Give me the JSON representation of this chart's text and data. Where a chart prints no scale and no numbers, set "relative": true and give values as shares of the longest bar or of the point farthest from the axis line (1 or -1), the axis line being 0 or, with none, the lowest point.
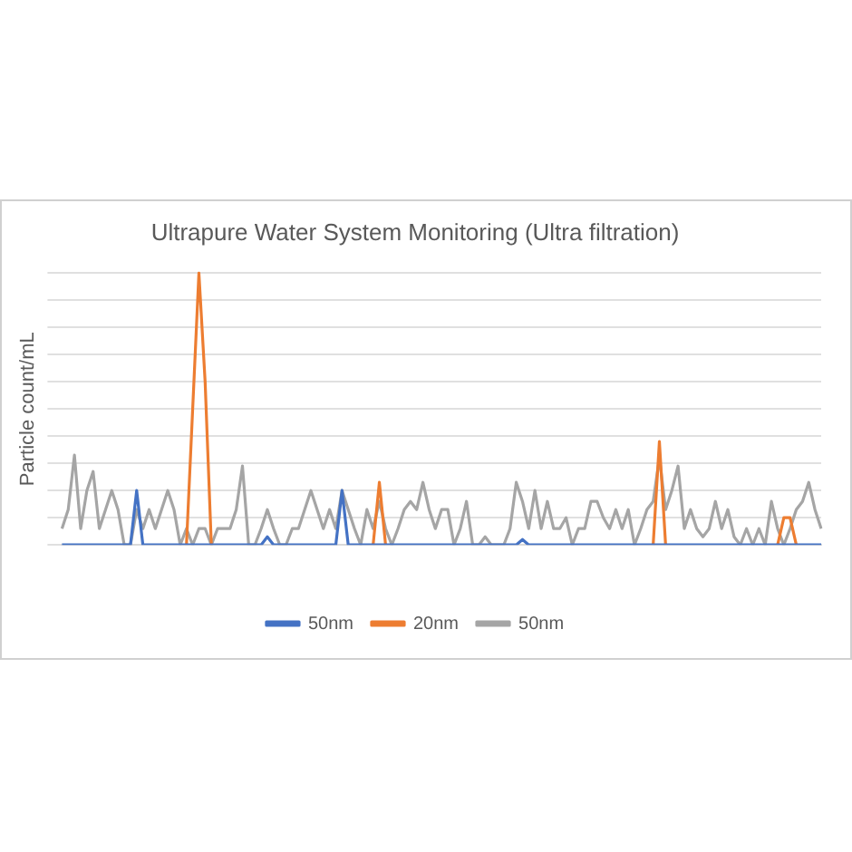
{
  "chart_data": {
    "type": "line",
    "title": "Ultrapure Water System Monitoring (Ultra filtration)",
    "ylabel": "Particle count/mL",
    "relative": true,
    "grid": "y",
    "legend": "bottom",
    "marker": "none",
    "categories": [
      null,
      null,
      null,
      null,
      null,
      null,
      null,
      null,
      null,
      null,
      null,
      null,
      null,
      null,
      null,
      null,
      null,
      null,
      null,
      null,
      null,
      null,
      null,
      null,
      null,
      null,
      null,
      null,
      null,
      null,
      null,
      null,
      null,
      null,
      null,
      null,
      null,
      null,
      null,
      null,
      null,
      null,
      null,
      null,
      null,
      null,
      null,
      null,
      null,
      null,
      null,
      null,
      null,
      null,
      null,
      null,
      null,
      null,
      null,
      null,
      null,
      null,
      null,
      null,
      null,
      null,
      null,
      null,
      null,
      null,
      null,
      null,
      null,
      null,
      null,
      null,
      null,
      null,
      null,
      null,
      null,
      null,
      null,
      null,
      null,
      null,
      null,
      null,
      null,
      null,
      null,
      null,
      null,
      null,
      null,
      null,
      null,
      null,
      null,
      null,
      null,
      null,
      null,
      null,
      null,
      null,
      null,
      null,
      null,
      null,
      null,
      null,
      null,
      null,
      null,
      null,
      null,
      null,
      null,
      null,
      null,
      null,
      null
    ],
    "series": [
      {
        "name": "50nm",
        "color": "#4472c4",
        "values": [
          0,
          0,
          0,
          0,
          0,
          0,
          0,
          0,
          0,
          0,
          0,
          0,
          0.2,
          0,
          0,
          0,
          0,
          0,
          0,
          0,
          0,
          0,
          0,
          0,
          0,
          0,
          0,
          0,
          0,
          0,
          0,
          0,
          0,
          0.03,
          0,
          0,
          0,
          0,
          0,
          0,
          0,
          0,
          0,
          0,
          0,
          0.2,
          0,
          0,
          0,
          0,
          0,
          0,
          0,
          0,
          0,
          0,
          0,
          0,
          0,
          0,
          0,
          0,
          0,
          0,
          0,
          0,
          0,
          0,
          0,
          0,
          0,
          0,
          0,
          0,
          0.02,
          0,
          0,
          0,
          0,
          0,
          0,
          0,
          0,
          0,
          0,
          0,
          0,
          0,
          0,
          0,
          0,
          0,
          0,
          0,
          0,
          0,
          0,
          0,
          0,
          0,
          0,
          0,
          0,
          0,
          0,
          0,
          0,
          0,
          0,
          0,
          0,
          0,
          0,
          0,
          0,
          0,
          0,
          0,
          0,
          0,
          0,
          0,
          0
        ]
      },
      {
        "name": "20nm",
        "color": "#ed7d31",
        "values": [
          null,
          null,
          null,
          null,
          null,
          null,
          null,
          null,
          null,
          null,
          null,
          null,
          null,
          null,
          null,
          null,
          null,
          null,
          null,
          null,
          0,
          0.5,
          1,
          0.6,
          0,
          null,
          null,
          null,
          null,
          null,
          null,
          null,
          null,
          null,
          null,
          null,
          null,
          null,
          null,
          null,
          null,
          null,
          null,
          null,
          null,
          null,
          null,
          null,
          null,
          null,
          0,
          0.23,
          0,
          null,
          null,
          null,
          null,
          null,
          null,
          null,
          null,
          null,
          null,
          null,
          null,
          null,
          null,
          null,
          null,
          null,
          null,
          null,
          null,
          null,
          null,
          null,
          null,
          null,
          null,
          null,
          null,
          null,
          null,
          null,
          null,
          null,
          null,
          null,
          null,
          null,
          null,
          null,
          null,
          null,
          null,
          0,
          0.38,
          0,
          null,
          null,
          null,
          null,
          null,
          null,
          null,
          null,
          null,
          null,
          null,
          null,
          null,
          null,
          null,
          null,
          null,
          0,
          0.1,
          0.1,
          0,
          null,
          null,
          null,
          null
        ]
      },
      {
        "name": "50nm",
        "color": "#a5a5a5",
        "values": [
          0.06,
          0.13,
          0.33,
          0.06,
          0.2,
          0.27,
          0.06,
          0.13,
          0.2,
          0.13,
          0,
          0,
          0.13,
          0.06,
          0.13,
          0.06,
          0.13,
          0.2,
          0.13,
          0,
          0.06,
          0,
          0.06,
          0.06,
          0,
          0.06,
          0.06,
          0.06,
          0.13,
          0.29,
          0,
          0,
          0.06,
          0.13,
          0.06,
          0,
          0,
          0.06,
          0.06,
          0.13,
          0.2,
          0.13,
          0.06,
          0.13,
          0.06,
          0.2,
          0.13,
          0.06,
          0,
          0.13,
          0.06,
          0.16,
          0.06,
          0,
          0.06,
          0.13,
          0.16,
          0.13,
          0.23,
          0.13,
          0.06,
          0.13,
          0.13,
          0,
          0.06,
          0.16,
          0,
          0,
          0.03,
          0,
          0,
          0,
          0.06,
          0.23,
          0.16,
          0.06,
          0.2,
          0.06,
          0.16,
          0.06,
          0.06,
          0.1,
          0,
          0.06,
          0.06,
          0.16,
          0.16,
          0.1,
          0.06,
          0.13,
          0.06,
          0.13,
          0,
          0.06,
          0.13,
          0.16,
          0.32,
          0.13,
          0.2,
          0.29,
          0.06,
          0.13,
          0.06,
          0.03,
          0.06,
          0.16,
          0.06,
          0.13,
          0.03,
          0,
          0.06,
          0,
          0.06,
          0,
          0.16,
          0.06,
          0,
          0.06,
          0.13,
          0.16,
          0.23,
          0.13,
          0.06
        ]
      }
    ]
  }
}
